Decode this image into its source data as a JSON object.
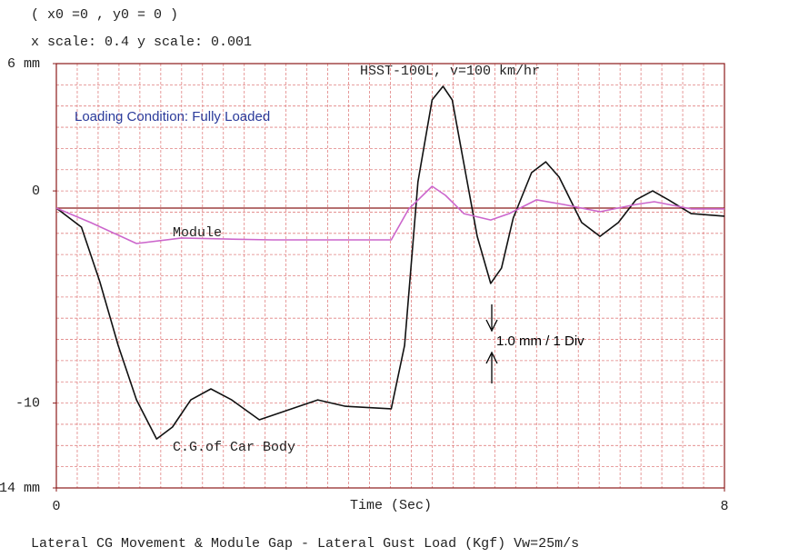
{
  "chart_data": {
    "type": "line",
    "title": "HSST-100L, v=100 km/hr",
    "header": [
      "( x0 =0 , y0 = 0 )",
      "x scale: 0.4   y scale: 0.001"
    ],
    "xlabel": "Time (Sec)",
    "caption": "Lateral CG Movement & Module Gap - Lateral Gust Load (Kgf)  Vw=25m/s",
    "annotations": [
      "Loading Condition: Fully Loaded",
      "1.0 mm / 1 Div"
    ],
    "xlim": [
      0,
      8
    ],
    "xticks": [
      0,
      8
    ],
    "ylim": [
      -14,
      6
    ],
    "yticks": [
      {
        "value": 6,
        "label": "6 mm"
      },
      0,
      -10,
      {
        "value": -14,
        "label": "-14 mm"
      }
    ],
    "grid": true,
    "series": [
      {
        "name": "C.G.of Car Body",
        "color": "#111111",
        "x": [
          0,
          0.3,
          0.52,
          0.74,
          0.96,
          1.2,
          1.39,
          1.61,
          1.85,
          2.1,
          2.43,
          2.75,
          3.13,
          3.46,
          4.01,
          4.17,
          4.33,
          4.5,
          4.63,
          4.74,
          4.88,
          5.04,
          5.2,
          5.33,
          5.47,
          5.69,
          5.86,
          6.02,
          6.29,
          6.51,
          6.73,
          6.94,
          7.14,
          7.33,
          7.6,
          8
        ],
        "values": [
          -0.81,
          -1.71,
          -4.28,
          -7.28,
          -9.85,
          -11.69,
          -11.13,
          -9.85,
          -9.33,
          -9.85,
          -10.79,
          -10.36,
          -9.85,
          -10.15,
          -10.27,
          -7.28,
          0.43,
          4.29,
          4.93,
          4.29,
          1.29,
          -2.14,
          -4.36,
          -3.64,
          -1.28,
          0.86,
          1.37,
          0.65,
          -1.49,
          -2.14,
          -1.49,
          -0.42,
          0.0,
          -0.42,
          -1.07,
          -1.19
        ]
      },
      {
        "name": "Module",
        "color": "#cc66cc",
        "x": [
          0,
          0.41,
          0.96,
          1.5,
          2.05,
          2.59,
          3.46,
          4.01,
          4.22,
          4.5,
          4.66,
          4.88,
          5.2,
          5.42,
          5.75,
          6.07,
          6.51,
          6.94,
          7.16,
          7.6,
          8
        ],
        "values": [
          -0.81,
          -1.49,
          -2.48,
          -2.22,
          -2.27,
          -2.31,
          -2.31,
          -2.31,
          -0.85,
          0.22,
          -0.21,
          -1.07,
          -1.37,
          -1.07,
          -0.42,
          -0.64,
          -0.98,
          -0.64,
          -0.51,
          -0.85,
          -0.85
        ]
      }
    ]
  }
}
